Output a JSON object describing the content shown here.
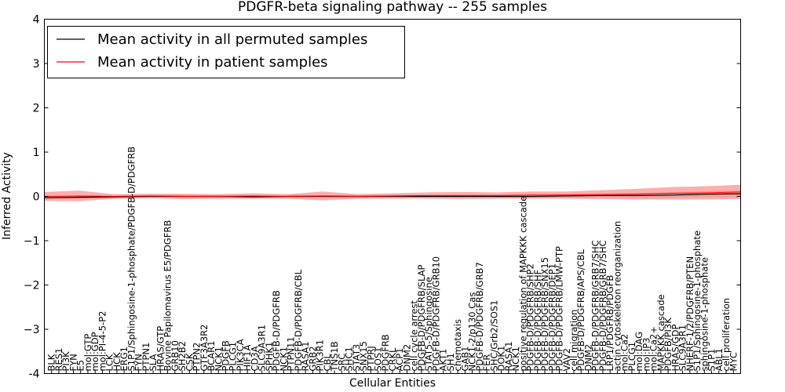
{
  "chart_data": {
    "type": "line",
    "title": "PDGFR-beta signaling pathway -- 255 samples",
    "xlabel": "Cellular Entities",
    "ylabel": "Inferred Activity",
    "ylim": [
      -4,
      4
    ],
    "yticks": [
      "-4",
      "−3",
      "−2",
      "−1",
      "0",
      "1",
      "2",
      "3",
      "4"
    ],
    "grid": false,
    "legend_position": "top-left",
    "legend": [
      {
        "label": "Mean activity in all permuted samples",
        "color": "#000000"
      },
      {
        "label": "Mean activity in patient samples",
        "color": "#ff0000"
      }
    ],
    "entities": [
      "BLK",
      "RES1",
      "PI3K",
      "FYN",
      "E5",
      "mol:GTP",
      "mol:GDP",
      "mol:PI-4-5-P2",
      "LCK",
      "HCK",
      "ERG1",
      "S1P1/Sphingosine-1-phosphate/PDGFB-D/PDGFRB",
      "FYN",
      "PTPN1",
      "SLA",
      "HRAS/GTP",
      "Bovine Papilomavirus E5/PDGFRB",
      "GRB10",
      "SH2B2",
      "CSK",
      "PTPN2",
      "GTF3A3R2",
      "BCAR1",
      "NCK1",
      "PDGFB",
      "PLCG1",
      "PIK3CA",
      "HIF1A",
      "CD3A",
      "SLC9A3R1",
      "SPHK1",
      "PDGFB-D/PDGFRB",
      "NCK1",
      "PTPN11",
      "PDGFB-D/PDGFRB/CBL",
      "RASA1",
      "GRB2",
      "PIK3R1",
      "CBL",
      "TNS1B",
      "SRC",
      "SHC1",
      "STAT3",
      "SNX15",
      "PTPRJ",
      "SOS1",
      "PDGFRB",
      "CRKL",
      "ACP1",
      "DNM2",
      "cell cycle arrest",
      "PDGFB-D/PDGFRB/SLAP",
      "STAT5-5/Sphingosine",
      "PDGFB-D/PDGFRB/GRB10",
      "AKT1",
      "SH1",
      "chemotaxis",
      "GAB1",
      "NCK1-2/p130 Cas",
      "PDGFB-D/PDGFRB/GRB7",
      "FER",
      "SHC/Grb2/SOS1",
      "DOK1",
      "RASA1",
      "NCK1",
      "positive regulation of MAPKKK cascade",
      "PDGFB-D/PDGFRB/SHP2",
      "PDGFB-D/PDGFRB/SHF",
      "PDGFB-D/PDGFRB/SNX15",
      "PDGFB-D/PDGFRB/DEP1",
      "PDGFB-D/PDGFRB/LMW-PTP",
      "VAV2",
      "cell migration",
      "PDGFB-D/PDGFRB/APS/CBL",
      "DNM2",
      "PDGFB-D/PDGFRB/GRB7/SHC",
      "PDGFB-D/PDGFRB/GRB7/SHC",
      "LRP1/PDGFRB/PDGFB",
      "actin cytoskeleton reorganization",
      "mol:Ca2",
      "PLCG1",
      "mol:DAG",
      "mol:IP3",
      "mol:Ca2+",
      "MAPKKK cascade",
      "PDGFB/PI3K",
      "HRAS/GDP",
      "SLC9A3R1",
      "NHERF-1/2/PDGFRB/PTEN",
      "S1P1/Sphingosine-1-phosphate",
      "sphingosine-1-phosphate",
      "S1P1",
      "ABL1",
      "cell proliferation",
      "MYC"
    ],
    "x": [
      0,
      0.05,
      0.1,
      0.15,
      0.2,
      0.25,
      0.3,
      0.35,
      0.4,
      0.45,
      0.5,
      0.55,
      0.6,
      0.65,
      0.7,
      0.75,
      0.8,
      0.85,
      0.9,
      0.95,
      1
    ],
    "series": [
      {
        "name": "Mean activity in all permuted samples",
        "values": [
          -0.03,
          -0.02,
          -0.01,
          0,
          0,
          0,
          -0.01,
          0,
          0,
          0,
          0,
          0,
          0,
          0,
          0,
          0.01,
          0.02,
          0.02,
          0.03,
          0.05,
          0.06
        ],
        "band": [
          0.03,
          0.03,
          0.03,
          0.03,
          0.03,
          0.03,
          0.03,
          0.03,
          0.03,
          0.03,
          0.03,
          0.03,
          0.03,
          0.04,
          0.04,
          0.05,
          0.05,
          0.06,
          0.06,
          0.07,
          0.08
        ]
      },
      {
        "name": "Mean activity in patient samples",
        "values": [
          0,
          0.01,
          0,
          0.01,
          0,
          0,
          0.01,
          0,
          0.01,
          0,
          0.01,
          0.02,
          0.02,
          0.02,
          0.03,
          0.03,
          0.04,
          0.05,
          0.07,
          0.08,
          0.1
        ],
        "band": [
          0.1,
          0.12,
          0.05,
          0.05,
          0.06,
          0.05,
          0.06,
          0.05,
          0.1,
          0.05,
          0.06,
          0.07,
          0.08,
          0.07,
          0.08,
          0.08,
          0.1,
          0.12,
          0.14,
          0.15,
          0.16
        ]
      }
    ]
  }
}
